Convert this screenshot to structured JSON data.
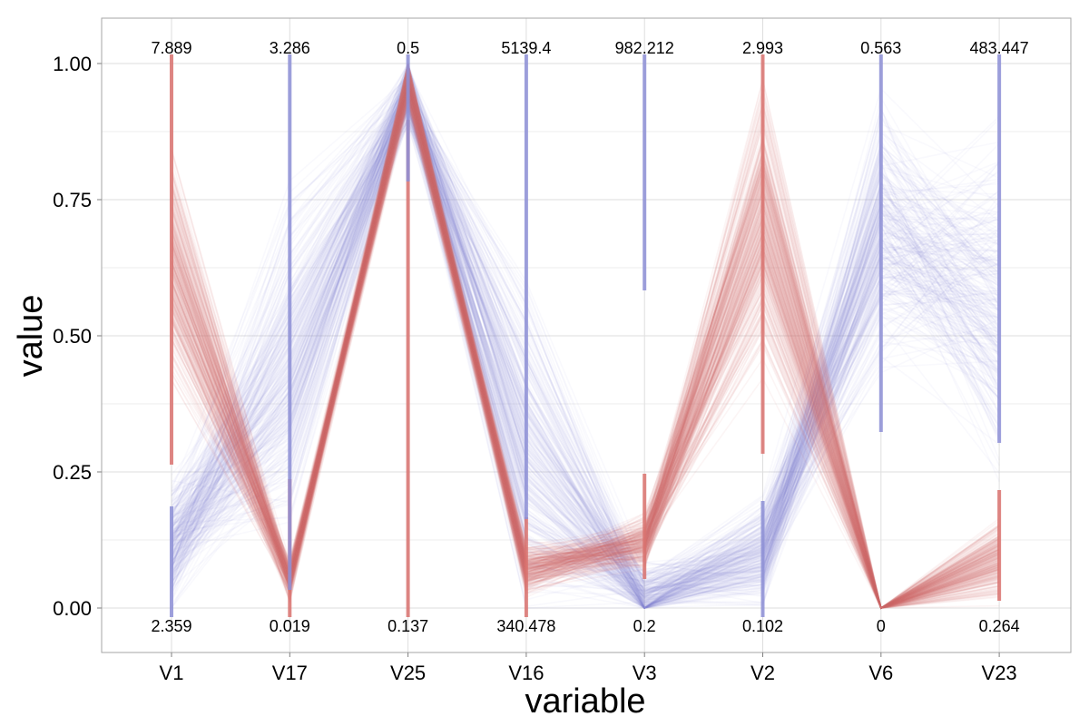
{
  "chart_data": {
    "type": "parallel-coordinates",
    "title": "",
    "xlabel": "variable",
    "ylabel": "value",
    "ylim": [
      -0.08,
      1.08
    ],
    "y_ticks": [
      0.0,
      0.25,
      0.5,
      0.75,
      1.0
    ],
    "y_tick_labels": [
      "0.00",
      "0.25",
      "0.50",
      "0.75",
      "1.00"
    ],
    "grid": true,
    "legend": "none",
    "categories": [
      "V1",
      "V17",
      "V25",
      "V16",
      "V3",
      "V2",
      "V6",
      "V23"
    ],
    "axis_max_labels": [
      "7.889",
      "3.286",
      "0.5",
      "5139.4",
      "982.212",
      "2.993",
      "0.563",
      "483.447"
    ],
    "axis_min_labels": [
      "2.359",
      "0.019",
      "0.137",
      "340.478",
      "0.2",
      "0.102",
      "0",
      "0.264"
    ],
    "groups": [
      {
        "color": "#d9726f",
        "profile": [
          0.62,
          0.05,
          0.97,
          0.07,
          0.12,
          0.72,
          0.0,
          0.09
        ],
        "spread": [
          0.18,
          0.03,
          0.04,
          0.04,
          0.04,
          0.2,
          0.0,
          0.06
        ],
        "ranges": [
          [
            0.28,
            1.0
          ],
          [
            0.0,
            0.22
          ],
          [
            0.0,
            0.88
          ],
          [
            0.0,
            0.15
          ],
          [
            0.07,
            0.23
          ],
          [
            0.3,
            1.0
          ],
          [
            0.0,
            0.0
          ],
          [
            0.03,
            0.2
          ]
        ]
      },
      {
        "color": "#8d8fd6",
        "profile": [
          0.12,
          0.45,
          0.95,
          0.3,
          0.02,
          0.1,
          0.7,
          0.55
        ],
        "spread": [
          0.1,
          0.25,
          0.05,
          0.25,
          0.05,
          0.08,
          0.2,
          0.25
        ],
        "ranges": [
          [
            0.0,
            0.17
          ],
          [
            0.05,
            1.0
          ],
          [
            0.8,
            1.0
          ],
          [
            0.18,
            1.0
          ],
          [
            0.6,
            1.0
          ],
          [
            0.0,
            0.18
          ],
          [
            0.34,
            1.0
          ],
          [
            0.32,
            1.0
          ]
        ]
      }
    ]
  }
}
